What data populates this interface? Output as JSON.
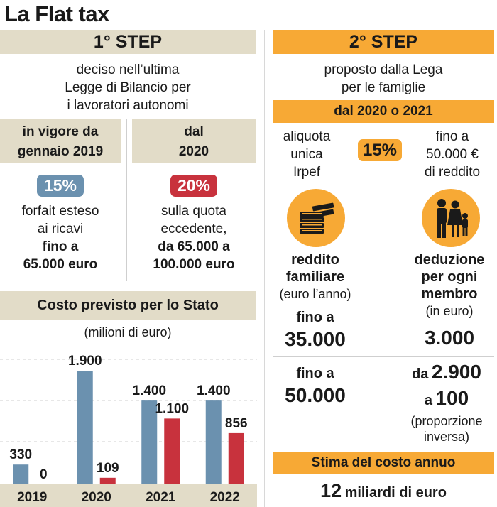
{
  "title": "La Flat tax",
  "left": {
    "step_title": "1° STEP",
    "desc": [
      "deciso nell’ultima",
      "Legge di Bilancio per",
      "i lavoratori autonomi"
    ],
    "col1": {
      "head": [
        "in vigore da",
        "gennaio 2019"
      ],
      "pct": "15%",
      "lines": [
        "forfait esteso",
        "ai ricavi"
      ],
      "bold_lines": [
        "fino a",
        "65.000 euro"
      ]
    },
    "col2": {
      "head": [
        "dal",
        "2020"
      ],
      "pct": "20%",
      "lines": [
        "sulla quota",
        "eccedente,"
      ],
      "bold_lines": [
        "da 65.000 a",
        "100.000 euro"
      ]
    },
    "cost_title": "Costo previsto per lo Stato",
    "cost_unit": "(milioni di euro)"
  },
  "right": {
    "step_title": "2° STEP",
    "desc": [
      "proposto dalla Lega",
      "per le famiglie"
    ],
    "period": "dal 2020 o 2021",
    "aliquota": [
      "aliquota",
      "unica",
      "Irpef"
    ],
    "pct": "15%",
    "limit": [
      "fino a",
      "50.000 €",
      "di reddito"
    ],
    "reddito": {
      "icon": "money-stack-icon",
      "head": [
        "reddito",
        "familiare"
      ],
      "sub": "(euro l’anno)",
      "fino_label": "fino a",
      "value1": "35.000",
      "fino_label2": "fino a",
      "value2": "50.000"
    },
    "deduzione": {
      "icon": "family-icon",
      "head": [
        "deduzione",
        "per ogni",
        "membro"
      ],
      "sub": "(in euro)",
      "value1": "3.000",
      "range_prefix": "da",
      "range_from": "2.900",
      "range_mid": "a",
      "range_to": "100",
      "note": [
        "(proporzione",
        "inversa)"
      ]
    },
    "cost_title": "Stima del costo annuo",
    "cost_value_num": "12",
    "cost_value_text": "miliardi di euro"
  },
  "chart_data": {
    "type": "bar",
    "title": "Costo previsto per lo Stato",
    "subtitle": "(milioni di euro)",
    "categories": [
      "2019",
      "2020",
      "2021",
      "2022"
    ],
    "series": [
      {
        "values": [
          330,
          1900,
          1400,
          1400
        ],
        "labels": [
          "330",
          "1.900",
          "1.400",
          "1.400"
        ],
        "color": "#6b91af"
      },
      {
        "values": [
          0,
          109,
          1100,
          856
        ],
        "labels": [
          "0",
          "109",
          "1.100",
          "856"
        ],
        "color": "#c8323d"
      }
    ],
    "ylim": [
      0,
      1900
    ]
  },
  "colors": {
    "beige": "#e2dcc8",
    "orange": "#f7a935",
    "blue": "#6b91af",
    "red": "#c8323d"
  }
}
